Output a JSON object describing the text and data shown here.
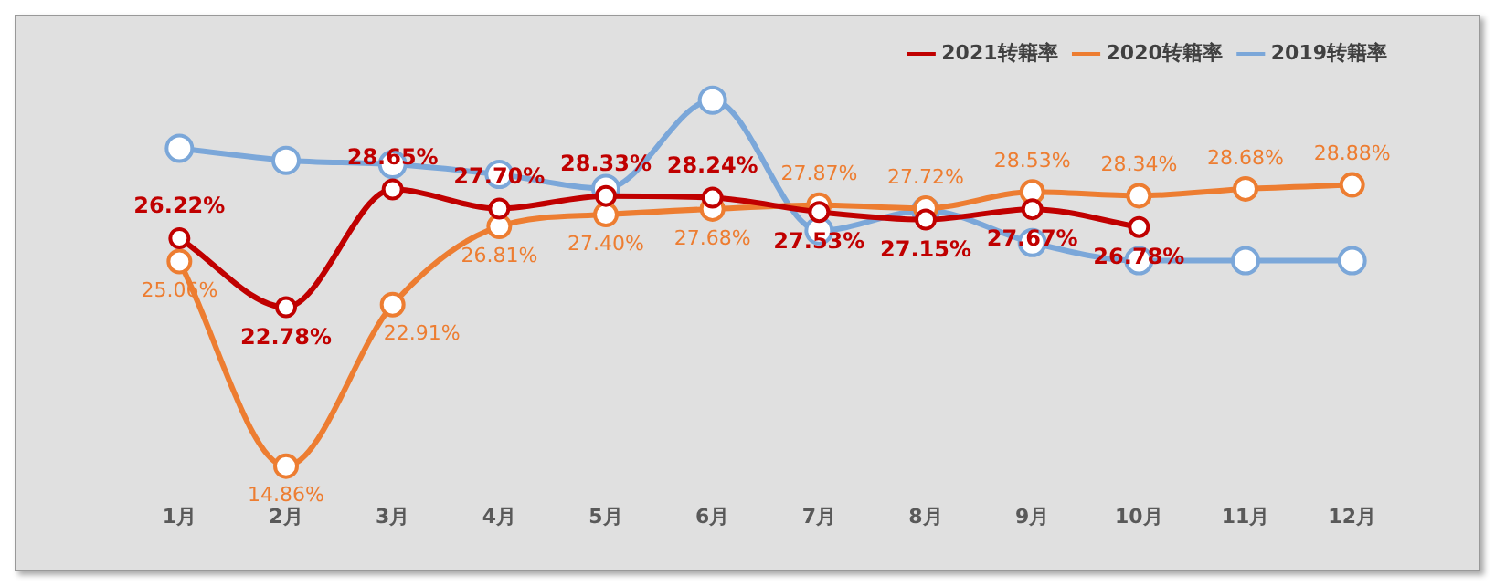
{
  "chart_data": {
    "type": "line",
    "categories": [
      "1月",
      "2月",
      "3月",
      "4月",
      "5月",
      "6月",
      "7月",
      "8月",
      "9月",
      "10月",
      "11月",
      "12月"
    ],
    "series": [
      {
        "name": "2021转籍率",
        "color": "#c00000",
        "values": [
          26.22,
          22.78,
          28.65,
          27.7,
          28.33,
          28.24,
          27.53,
          27.15,
          27.67,
          26.78,
          null,
          null
        ],
        "value_labels": [
          "26.22%",
          "22.78%",
          "28.65%",
          "27.70%",
          "28.33%",
          "28.24%",
          "27.53%",
          "27.15%",
          "27.67%",
          "26.78%",
          null,
          null
        ]
      },
      {
        "name": "2020转籍率",
        "color": "#ed7d31",
        "values": [
          25.06,
          14.86,
          22.91,
          26.81,
          27.4,
          27.68,
          27.87,
          27.72,
          28.53,
          28.34,
          28.68,
          28.88
        ],
        "value_labels": [
          "25.06%",
          "14.86%",
          "22.91%",
          "26.81%",
          "27.40%",
          "27.68%",
          "27.87%",
          "27.72%",
          "28.53%",
          "28.34%",
          "28.68%",
          "28.88%"
        ]
      },
      {
        "name": "2019转籍率",
        "color": "#7ba7d9",
        "values": [
          30.7,
          30.1,
          29.9,
          29.4,
          28.7,
          33.1,
          26.6,
          27.6,
          26.0,
          25.1,
          25.1,
          25.1
        ]
      }
    ],
    "tick_labels": "x",
    "grid": false,
    "legend": "top right",
    "marker": "circle",
    "line_style": "solid"
  }
}
